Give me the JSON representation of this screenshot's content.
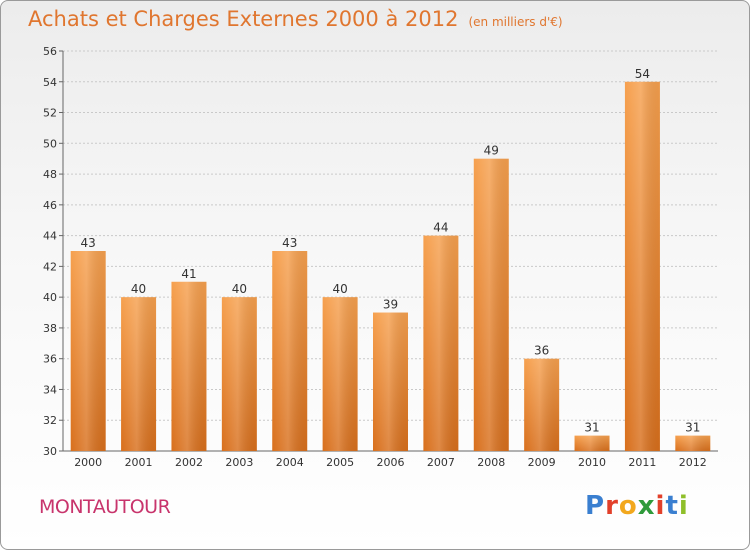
{
  "title": "Achats et Charges Externes 2000 à 2012",
  "unit": "(en milliers d'€)",
  "place": "MONTAUTOUR",
  "logo": {
    "letters": [
      "P",
      "r",
      "o",
      "x",
      "i",
      "t",
      "i"
    ],
    "colors": [
      "#3a7fd0",
      "#e2402a",
      "#f2a81d",
      "#2f9a3b",
      "#e2402a",
      "#3a7fd0",
      "#8fbf2a"
    ]
  },
  "colors": {
    "bar": "#f0923a",
    "title": "#e0762f",
    "place": "#c8346c"
  },
  "chart_data": {
    "type": "bar",
    "categories": [
      "2000",
      "2001",
      "2002",
      "2003",
      "2004",
      "2005",
      "2006",
      "2007",
      "2008",
      "2009",
      "2010",
      "2011",
      "2012"
    ],
    "values": [
      43,
      40,
      41,
      40,
      43,
      40,
      39,
      44,
      49,
      36,
      31,
      54,
      31
    ],
    "ylim": [
      30,
      56
    ],
    "yticks": [
      30,
      32,
      34,
      36,
      38,
      40,
      42,
      44,
      46,
      48,
      50,
      52,
      54,
      56
    ],
    "grid": true
  }
}
